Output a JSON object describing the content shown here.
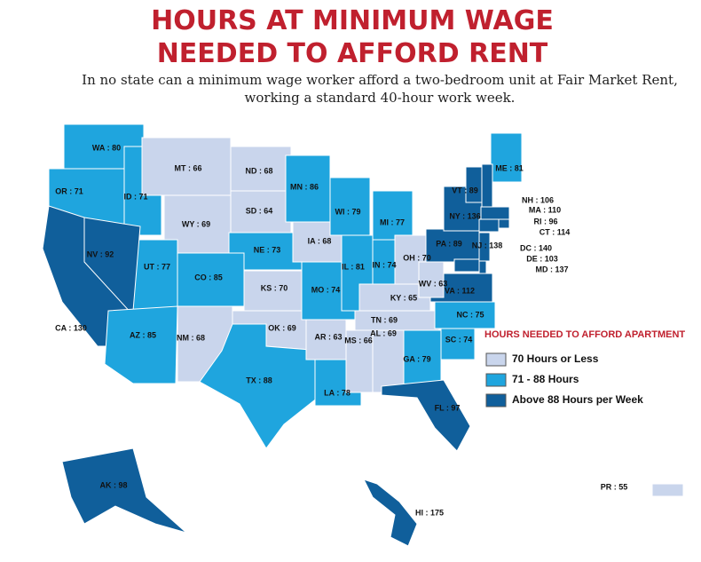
{
  "title": [
    "HOURS AT MINIMUM WAGE",
    "NEEDED TO AFFORD RENT"
  ],
  "subtitle": [
    "In no state can a minimum wage worker afford a two-bedroom unit at Fair Market Rent,",
    "working a standard 40-hour work week."
  ],
  "legend": {
    "title": "HOURS NEEDED TO AFFORD APARTMENT",
    "items": [
      {
        "label": "70 Hours or Less",
        "color": "#c9d5ec"
      },
      {
        "label": "71 - 88 Hours",
        "color": "#1fa5de"
      },
      {
        "label": "Above 88 Hours per Week",
        "color": "#105f9b"
      }
    ]
  },
  "states": [
    {
      "label": "WA : 80",
      "color": "#1fa5de"
    },
    {
      "label": "OR : 71",
      "color": "#1fa5de"
    },
    {
      "label": "ID : 71",
      "color": "#1fa5de"
    },
    {
      "label": "MT : 66",
      "color": "#c9d5ec"
    },
    {
      "label": "ND : 68",
      "color": "#c9d5ec"
    },
    {
      "label": "SD : 64",
      "color": "#c9d5ec"
    },
    {
      "label": "WY : 69",
      "color": "#c9d5ec"
    },
    {
      "label": "NE : 73",
      "color": "#1fa5de"
    },
    {
      "label": "CO : 85",
      "color": "#1fa5de"
    },
    {
      "label": "UT : 77",
      "color": "#1fa5de"
    },
    {
      "label": "NV : 92",
      "color": "#105f9b"
    },
    {
      "label": "CA : 130",
      "color": "#105f9b"
    },
    {
      "label": "AZ : 85",
      "color": "#1fa5de"
    },
    {
      "label": "NM : 68",
      "color": "#c9d5ec"
    },
    {
      "label": "KS : 70",
      "color": "#c9d5ec"
    },
    {
      "label": "OK : 69",
      "color": "#c9d5ec"
    },
    {
      "label": "TX : 88",
      "color": "#1fa5de"
    },
    {
      "label": "MN : 86",
      "color": "#1fa5de"
    },
    {
      "label": "IA : 68",
      "color": "#c9d5ec"
    },
    {
      "label": "MO : 74",
      "color": "#1fa5de"
    },
    {
      "label": "AR : 63",
      "color": "#c9d5ec"
    },
    {
      "label": "LA : 78",
      "color": "#1fa5de"
    },
    {
      "label": "WI : 79",
      "color": "#1fa5de"
    },
    {
      "label": "IL : 81",
      "color": "#1fa5de"
    },
    {
      "label": "MI : 77",
      "color": "#1fa5de"
    },
    {
      "label": "IN : 74",
      "color": "#1fa5de"
    },
    {
      "label": "OH : 70",
      "color": "#c9d5ec"
    },
    {
      "label": "KY : 65",
      "color": "#c9d5ec"
    },
    {
      "label": "TN : 69",
      "color": "#c9d5ec"
    },
    {
      "label": "MS : 66",
      "color": "#c9d5ec"
    },
    {
      "label": "AL : 69",
      "color": "#c9d5ec"
    },
    {
      "label": "GA : 79",
      "color": "#1fa5de"
    },
    {
      "label": "FL : 97",
      "color": "#105f9b"
    },
    {
      "label": "SC : 74",
      "color": "#1fa5de"
    },
    {
      "label": "NC : 75",
      "color": "#1fa5de"
    },
    {
      "label": "VA : 112",
      "color": "#105f9b"
    },
    {
      "label": "WV : 63",
      "color": "#c9d5ec"
    },
    {
      "label": "PA : 89",
      "color": "#105f9b"
    },
    {
      "label": "NY : 136",
      "color": "#105f9b"
    },
    {
      "label": "VT : 89",
      "color": "#105f9b"
    },
    {
      "label": "ME : 81",
      "color": "#1fa5de"
    },
    {
      "label": "NH : 106",
      "color": "#105f9b"
    },
    {
      "label": "MA : 110",
      "color": "#105f9b"
    },
    {
      "label": "RI : 96",
      "color": "#105f9b"
    },
    {
      "label": "CT : 114",
      "color": "#105f9b"
    },
    {
      "label": "NJ : 138",
      "color": "#105f9b"
    },
    {
      "label": "DC : 140",
      "color": "#105f9b"
    },
    {
      "label": "DE : 103",
      "color": "#105f9b"
    },
    {
      "label": "MD : 137",
      "color": "#105f9b"
    },
    {
      "label": "AK : 98",
      "color": "#105f9b"
    },
    {
      "label": "HI : 175",
      "color": "#105f9b"
    },
    {
      "label": "PR : 55",
      "color": "#c9d5ec"
    }
  ]
}
